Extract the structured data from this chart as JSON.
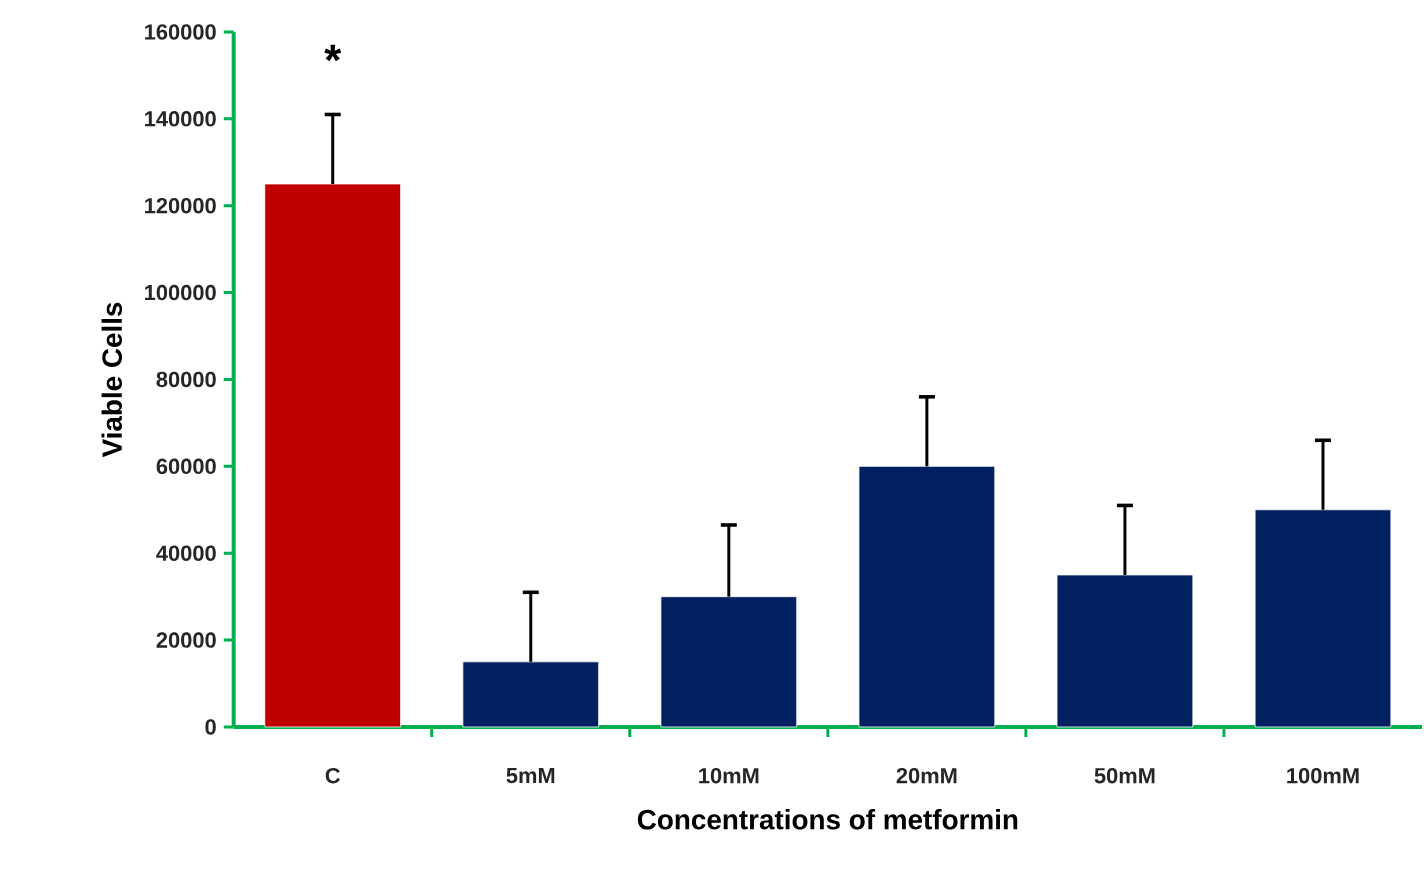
{
  "chart_data": {
    "type": "bar",
    "xlabel": "Concentrations of metformin",
    "ylabel": "Viable Cells",
    "categories": [
      "C",
      "5mM",
      "10mM",
      "20mM",
      "50mM",
      "100mM"
    ],
    "values": [
      125000,
      15000,
      30000,
      60000,
      35000,
      50000
    ],
    "colors": [
      "#c00000",
      "#002060",
      "#002060",
      "#002060",
      "#002060",
      "#002060"
    ],
    "errors": [
      [
        125000,
        141000
      ],
      [
        15000,
        31000
      ],
      [
        30000,
        46500
      ],
      [
        60000,
        76000
      ],
      [
        35000,
        51000
      ],
      [
        50000,
        66000
      ]
    ],
    "annotations": [
      "*"
    ],
    "ylim": [
      0,
      160000
    ],
    "yticks": [
      0,
      20000,
      40000,
      60000,
      80000,
      100000,
      120000,
      140000,
      160000
    ],
    "grid": false
  }
}
